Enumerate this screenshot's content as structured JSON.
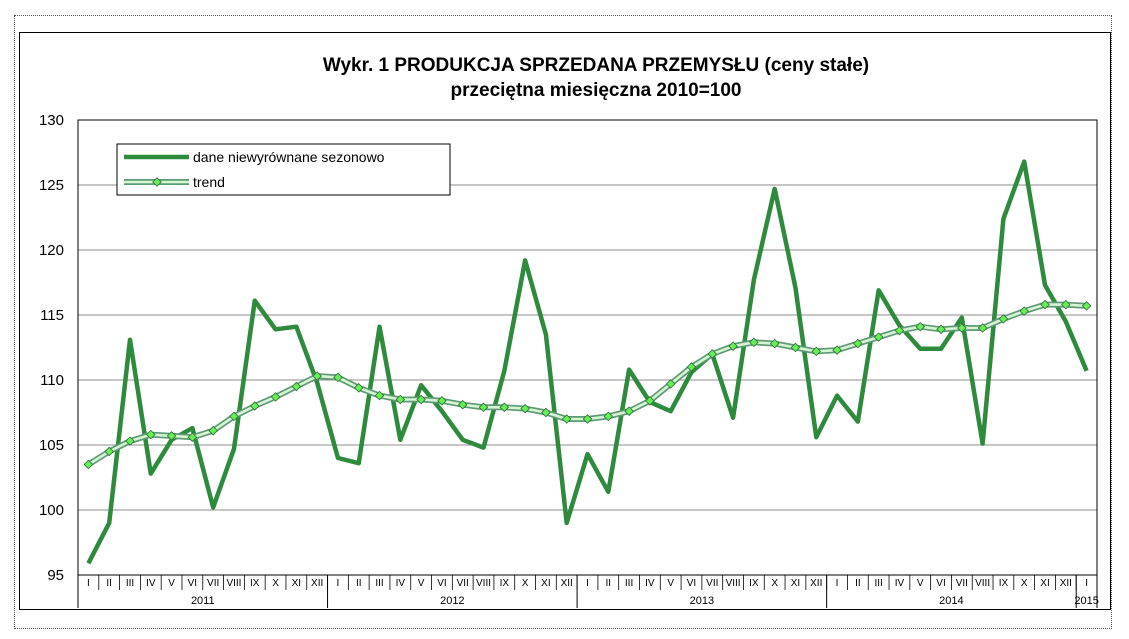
{
  "chart_data": {
    "type": "line",
    "title": "Wykr. 1 PRODUKCJA SPRZEDANA PRZEMYSŁU (ceny stałe)",
    "subtitle": "przeciętna miesięczna 2010=100",
    "ylim": [
      95,
      130
    ],
    "yticks": [
      "95",
      "100",
      "105",
      "110",
      "115",
      "120",
      "125",
      "130"
    ],
    "grid": "horizontal",
    "legend_position": "top-left",
    "months": [
      "I",
      "II",
      "III",
      "IV",
      "V",
      "VI",
      "VII",
      "VIII",
      "IX",
      "X",
      "XI",
      "XII",
      "I",
      "II",
      "III",
      "IV",
      "V",
      "VI",
      "VII",
      "VIII",
      "IX",
      "X",
      "XI",
      "XII",
      "I",
      "II",
      "III",
      "IV",
      "V",
      "VI",
      "VII",
      "VIII",
      "IX",
      "X",
      "XI",
      "XII",
      "I",
      "II",
      "III",
      "IV",
      "V",
      "VI",
      "VII",
      "VIII",
      "IX",
      "X",
      "XI",
      "XII",
      "I"
    ],
    "years": [
      {
        "label": "2011",
        "months": 12
      },
      {
        "label": "2012",
        "months": 12
      },
      {
        "label": "2013",
        "months": 12
      },
      {
        "label": "2014",
        "months": 12
      },
      {
        "label": "2015",
        "months": 1
      }
    ],
    "series": [
      {
        "name": "dane niewyrównane sezonowo",
        "color": "#2e8b3e",
        "values": [
          95.9,
          99.0,
          113.1,
          102.8,
          105.4,
          106.3,
          100.2,
          104.7,
          116.1,
          113.9,
          114.1,
          109.8,
          104.0,
          103.6,
          114.1,
          105.4,
          109.6,
          107.6,
          105.4,
          104.8,
          110.7,
          119.2,
          113.5,
          99.0,
          104.3,
          101.4,
          110.8,
          108.3,
          107.6,
          110.6,
          112.0,
          107.1,
          117.7,
          124.7,
          117.1,
          105.6,
          108.8,
          106.8,
          116.9,
          114.2,
          112.4,
          112.4,
          114.8,
          105.1,
          122.4,
          126.8,
          117.3,
          114.5,
          110.7
        ]
      },
      {
        "name": "trend",
        "color": "#66ee55",
        "values": [
          103.5,
          104.5,
          105.3,
          105.8,
          105.7,
          105.6,
          106.1,
          107.2,
          108.0,
          108.7,
          109.5,
          110.3,
          110.2,
          109.4,
          108.8,
          108.5,
          108.5,
          108.4,
          108.1,
          107.9,
          107.9,
          107.8,
          107.5,
          107.0,
          107.0,
          107.2,
          107.6,
          108.4,
          109.7,
          111.0,
          112.0,
          112.6,
          112.9,
          112.8,
          112.5,
          112.2,
          112.3,
          112.8,
          113.3,
          113.8,
          114.1,
          113.9,
          114.0,
          114.0,
          114.7,
          115.3,
          115.8,
          115.8,
          115.7
        ]
      }
    ]
  }
}
